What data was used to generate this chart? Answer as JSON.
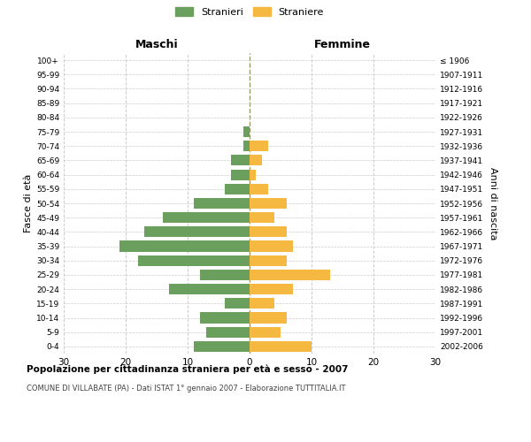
{
  "age_groups": [
    "0-4",
    "5-9",
    "10-14",
    "15-19",
    "20-24",
    "25-29",
    "30-34",
    "35-39",
    "40-44",
    "45-49",
    "50-54",
    "55-59",
    "60-64",
    "65-69",
    "70-74",
    "75-79",
    "80-84",
    "85-89",
    "90-94",
    "95-99",
    "100+"
  ],
  "birth_years": [
    "2002-2006",
    "1997-2001",
    "1992-1996",
    "1987-1991",
    "1982-1986",
    "1977-1981",
    "1972-1976",
    "1967-1971",
    "1962-1966",
    "1957-1961",
    "1952-1956",
    "1947-1951",
    "1942-1946",
    "1937-1941",
    "1932-1936",
    "1927-1931",
    "1922-1926",
    "1917-1921",
    "1912-1916",
    "1907-1911",
    "≤ 1906"
  ],
  "maschi": [
    9,
    7,
    8,
    4,
    13,
    8,
    18,
    21,
    17,
    14,
    9,
    4,
    3,
    3,
    1,
    1,
    0,
    0,
    0,
    0,
    0
  ],
  "femmine": [
    10,
    5,
    6,
    4,
    7,
    13,
    6,
    7,
    6,
    4,
    6,
    3,
    1,
    2,
    3,
    0,
    0,
    0,
    0,
    0,
    0
  ],
  "maschi_color": "#6a9f5e",
  "femmine_color": "#f5b942",
  "bar_height": 0.75,
  "xlim": 30,
  "title": "Popolazione per cittadinanza straniera per età e sesso - 2007",
  "subtitle": "COMUNE DI VILLABATE (PA) - Dati ISTAT 1° gennaio 2007 - Elaborazione TUTTITALIA.IT",
  "ylabel_left": "Fasce di età",
  "ylabel_right": "Anni di nascita",
  "label_maschi": "Maschi",
  "label_femmine": "Femmine",
  "legend_stranieri": "Stranieri",
  "legend_straniere": "Straniere",
  "background_color": "#ffffff",
  "grid_color": "#cccccc",
  "xticks": [
    -30,
    -20,
    -10,
    0,
    10,
    20,
    30
  ],
  "xtick_labels": [
    "30",
    "20",
    "10",
    "0",
    "10",
    "20",
    "30"
  ]
}
